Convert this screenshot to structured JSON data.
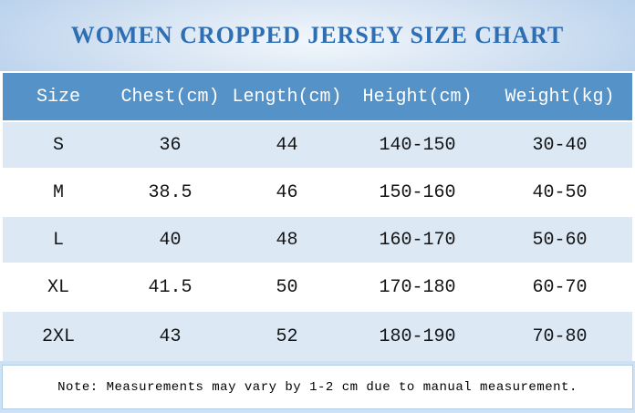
{
  "title": "WOMEN CROPPED JERSEY SIZE CHART",
  "table": {
    "columns": [
      "Size",
      "Chest(cm)",
      "Length(cm)",
      "Height(cm)",
      "Weight(kg)"
    ],
    "rows": [
      [
        "S",
        "36",
        "44",
        "140-150",
        "30-40"
      ],
      [
        "M",
        "38.5",
        "46",
        "150-160",
        "40-50"
      ],
      [
        "L",
        "40",
        "48",
        "160-170",
        "50-60"
      ],
      [
        "XL",
        "41.5",
        "50",
        "170-180",
        "60-70"
      ],
      [
        "2XL",
        "43",
        "52",
        "180-190",
        "70-80"
      ]
    ]
  },
  "note": "Note: Measurements may vary by 1-2 cm due to manual measurement.",
  "colors": {
    "header_bg": "#5592c8",
    "header_text": "#ffffff",
    "row_alt_bg": "#dce9f5",
    "row_bg": "#ffffff",
    "title_text": "#2e6eb2",
    "title_band_edge": "#a7c6e5",
    "note_frame_bg": "#cfe2f3",
    "note_border": "#aecde9"
  },
  "chart_data": {
    "type": "table",
    "title": "WOMEN CROPPED JERSEY SIZE CHART",
    "columns": [
      "Size",
      "Chest(cm)",
      "Length(cm)",
      "Height(cm)",
      "Weight(kg)"
    ],
    "rows": [
      {
        "size": "S",
        "chest_cm": 36,
        "length_cm": 44,
        "height_cm": "140-150",
        "weight_kg": "30-40"
      },
      {
        "size": "M",
        "chest_cm": 38.5,
        "length_cm": 46,
        "height_cm": "150-160",
        "weight_kg": "40-50"
      },
      {
        "size": "L",
        "chest_cm": 40,
        "length_cm": 48,
        "height_cm": "160-170",
        "weight_kg": "50-60"
      },
      {
        "size": "XL",
        "chest_cm": 41.5,
        "length_cm": 50,
        "height_cm": "170-180",
        "weight_kg": "60-70"
      },
      {
        "size": "2XL",
        "chest_cm": 43,
        "length_cm": 52,
        "height_cm": "180-190",
        "weight_kg": "70-80"
      }
    ],
    "footnote": "Note: Measurements may vary by 1-2 cm due to manual measurement."
  }
}
